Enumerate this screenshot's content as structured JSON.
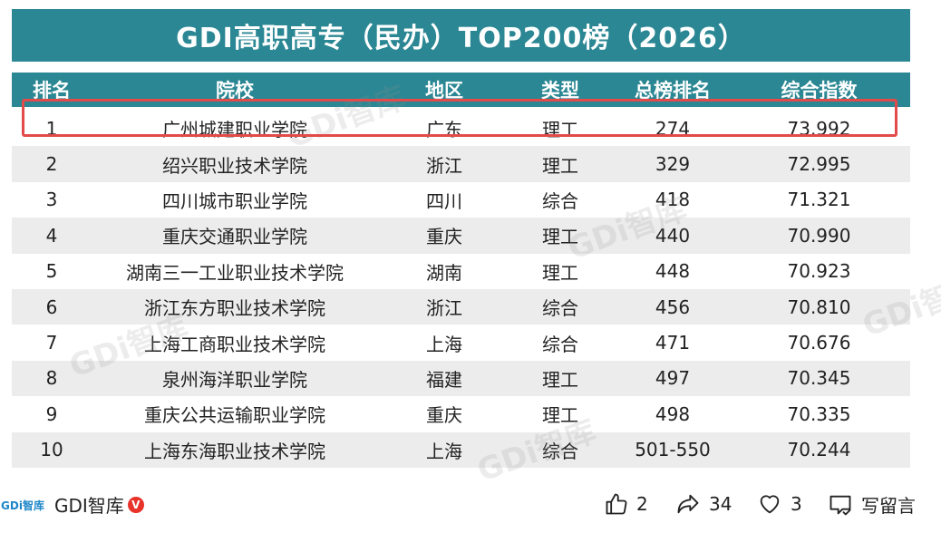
{
  "title": "GDI高职高专（民办）TOP200榜（2026）",
  "columns": [
    "排名",
    "院校",
    "地区",
    "类型",
    "总榜排名",
    "综合指数"
  ],
  "rows": [
    [
      "1",
      "广州城建职业学院",
      "广东",
      "理工",
      "274",
      "73.992"
    ],
    [
      "2",
      "绍兴职业技术学院",
      "浙江",
      "理工",
      "329",
      "72.995"
    ],
    [
      "3",
      "四川城市职业学院",
      "四川",
      "综合",
      "418",
      "71.321"
    ],
    [
      "4",
      "重庆交通职业学院",
      "重庆",
      "理工",
      "440",
      "70.990"
    ],
    [
      "5",
      "湖南三一工业职业技术学院",
      "湖南",
      "理工",
      "448",
      "70.923"
    ],
    [
      "6",
      "浙江东方职业技术学院",
      "浙江",
      "综合",
      "456",
      "70.810"
    ],
    [
      "7",
      "上海工商职业技术学院",
      "上海",
      "综合",
      "471",
      "70.676"
    ],
    [
      "8",
      "泉州海洋职业学院",
      "福建",
      "理工",
      "497",
      "70.345"
    ],
    [
      "9",
      "重庆公共运输职业学院",
      "重庆",
      "理工",
      "498",
      "70.335"
    ],
    [
      "10",
      "上海东海职业技术学院",
      "上海",
      "综合",
      "501-550",
      "70.244"
    ]
  ],
  "watermark": "GDi智库",
  "footer": {
    "logo_text": "GDi智库",
    "author": "GDI智库",
    "verified_mark": "V",
    "likes": "2",
    "shares": "34",
    "favorites": "3",
    "comment_label": "写留言"
  },
  "colors": {
    "header_bg": "#2a8793",
    "highlight": "#e34a4a",
    "alt_row": "#ececec"
  }
}
